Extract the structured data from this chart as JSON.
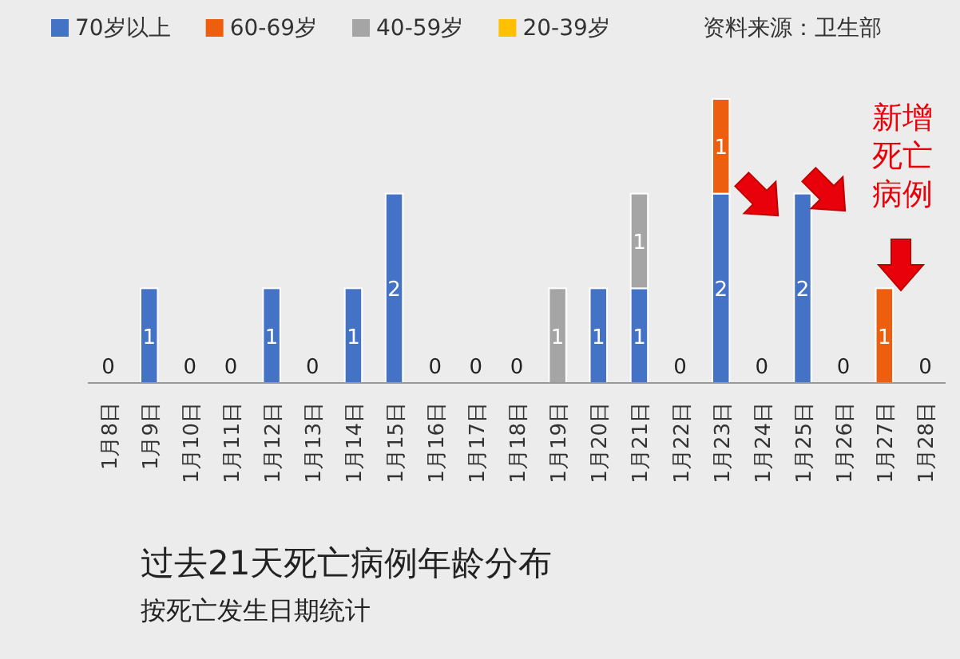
{
  "chart_data": {
    "type": "bar",
    "stacked": true,
    "title": "过去21天死亡病例年龄分布",
    "subtitle": "按死亡发生日期统计",
    "annotations": [
      "资料来源：卫生部",
      "新增死亡病例"
    ],
    "categories": [
      "1月8日",
      "1月9日",
      "1月10日",
      "1月11日",
      "1月12日",
      "1月13日",
      "1月14日",
      "1月15日",
      "1月16日",
      "1月17日",
      "1月18日",
      "1月19日",
      "1月20日",
      "1月21日",
      "1月22日",
      "1月23日",
      "1月24日",
      "1月25日",
      "1月26日",
      "1月27日",
      "1月28日"
    ],
    "legend": "top",
    "series": [
      {
        "name": "70岁以上",
        "color": "#4472c4",
        "values": [
          0,
          1,
          0,
          0,
          1,
          0,
          1,
          2,
          0,
          0,
          0,
          0,
          1,
          1,
          0,
          2,
          0,
          2,
          0,
          0,
          0
        ],
        "value_labels": [
          "0",
          "1",
          "0",
          "0",
          "1",
          "0",
          "1",
          "2",
          "0",
          "0",
          "0",
          null,
          "1",
          "1",
          "0",
          "2",
          "0",
          "2",
          "0",
          null,
          "0"
        ]
      },
      {
        "name": "60-69岁",
        "color": "#ed5f0f",
        "values": [
          0,
          0,
          0,
          0,
          0,
          0,
          0,
          0,
          0,
          0,
          0,
          0,
          0,
          0,
          0,
          1,
          0,
          0,
          0,
          1,
          0
        ],
        "value_labels": [
          null,
          null,
          null,
          null,
          null,
          null,
          null,
          null,
          null,
          null,
          null,
          null,
          null,
          null,
          null,
          "1",
          null,
          null,
          null,
          "1",
          null
        ]
      },
      {
        "name": "40-59岁",
        "color": "#a5a5a5",
        "values": [
          0,
          0,
          0,
          0,
          0,
          0,
          0,
          0,
          0,
          0,
          0,
          1,
          0,
          1,
          0,
          0,
          0,
          0,
          0,
          0,
          0
        ],
        "value_labels": [
          null,
          null,
          null,
          null,
          null,
          null,
          null,
          null,
          null,
          null,
          null,
          "1",
          null,
          "1",
          null,
          null,
          null,
          null,
          null,
          null,
          null
        ]
      },
      {
        "name": "20-39岁",
        "color": "#ffc000",
        "values": [
          0,
          0,
          0,
          0,
          0,
          0,
          0,
          0,
          0,
          0,
          0,
          0,
          0,
          0,
          0,
          0,
          0,
          0,
          0,
          0,
          0
        ]
      }
    ]
  }
}
